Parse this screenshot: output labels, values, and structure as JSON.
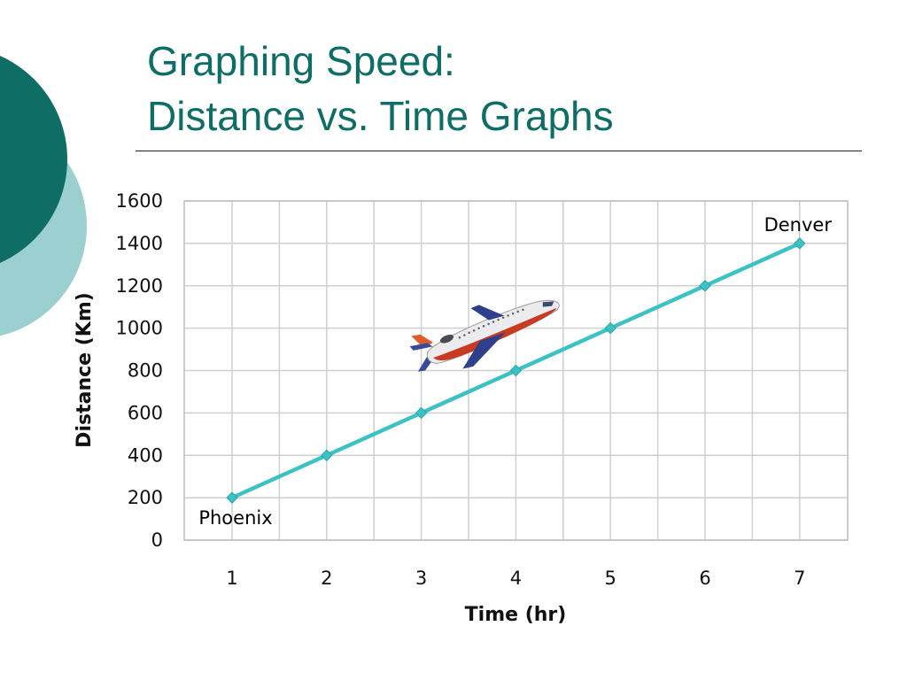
{
  "slide": {
    "title_line1": "Graphing Speed:",
    "title_line2": "Distance vs. Time Graphs",
    "accent_dark": "#0e6e66",
    "accent_light": "#9ccfcf"
  },
  "chart_data": {
    "type": "line",
    "title": "",
    "xlabel": "Time (hr)",
    "ylabel": "Distance (Km)",
    "categories": [
      "1",
      "2",
      "3",
      "4",
      "5",
      "6",
      "7"
    ],
    "series": [
      {
        "values": [
          200,
          400,
          600,
          800,
          1000,
          1200,
          1400
        ],
        "color": "#3cc2c4"
      }
    ],
    "ylim": [
      0,
      1600
    ],
    "yticks": [
      0,
      200,
      400,
      600,
      800,
      1000,
      1200,
      1400,
      1600
    ],
    "grid": true,
    "legend": "none",
    "annotations": [
      {
        "text": "Phoenix",
        "at_point": 0,
        "placement": "below"
      },
      {
        "text": "Denver",
        "at_point": 6,
        "placement": "above"
      }
    ],
    "image": "airplane-icon"
  }
}
